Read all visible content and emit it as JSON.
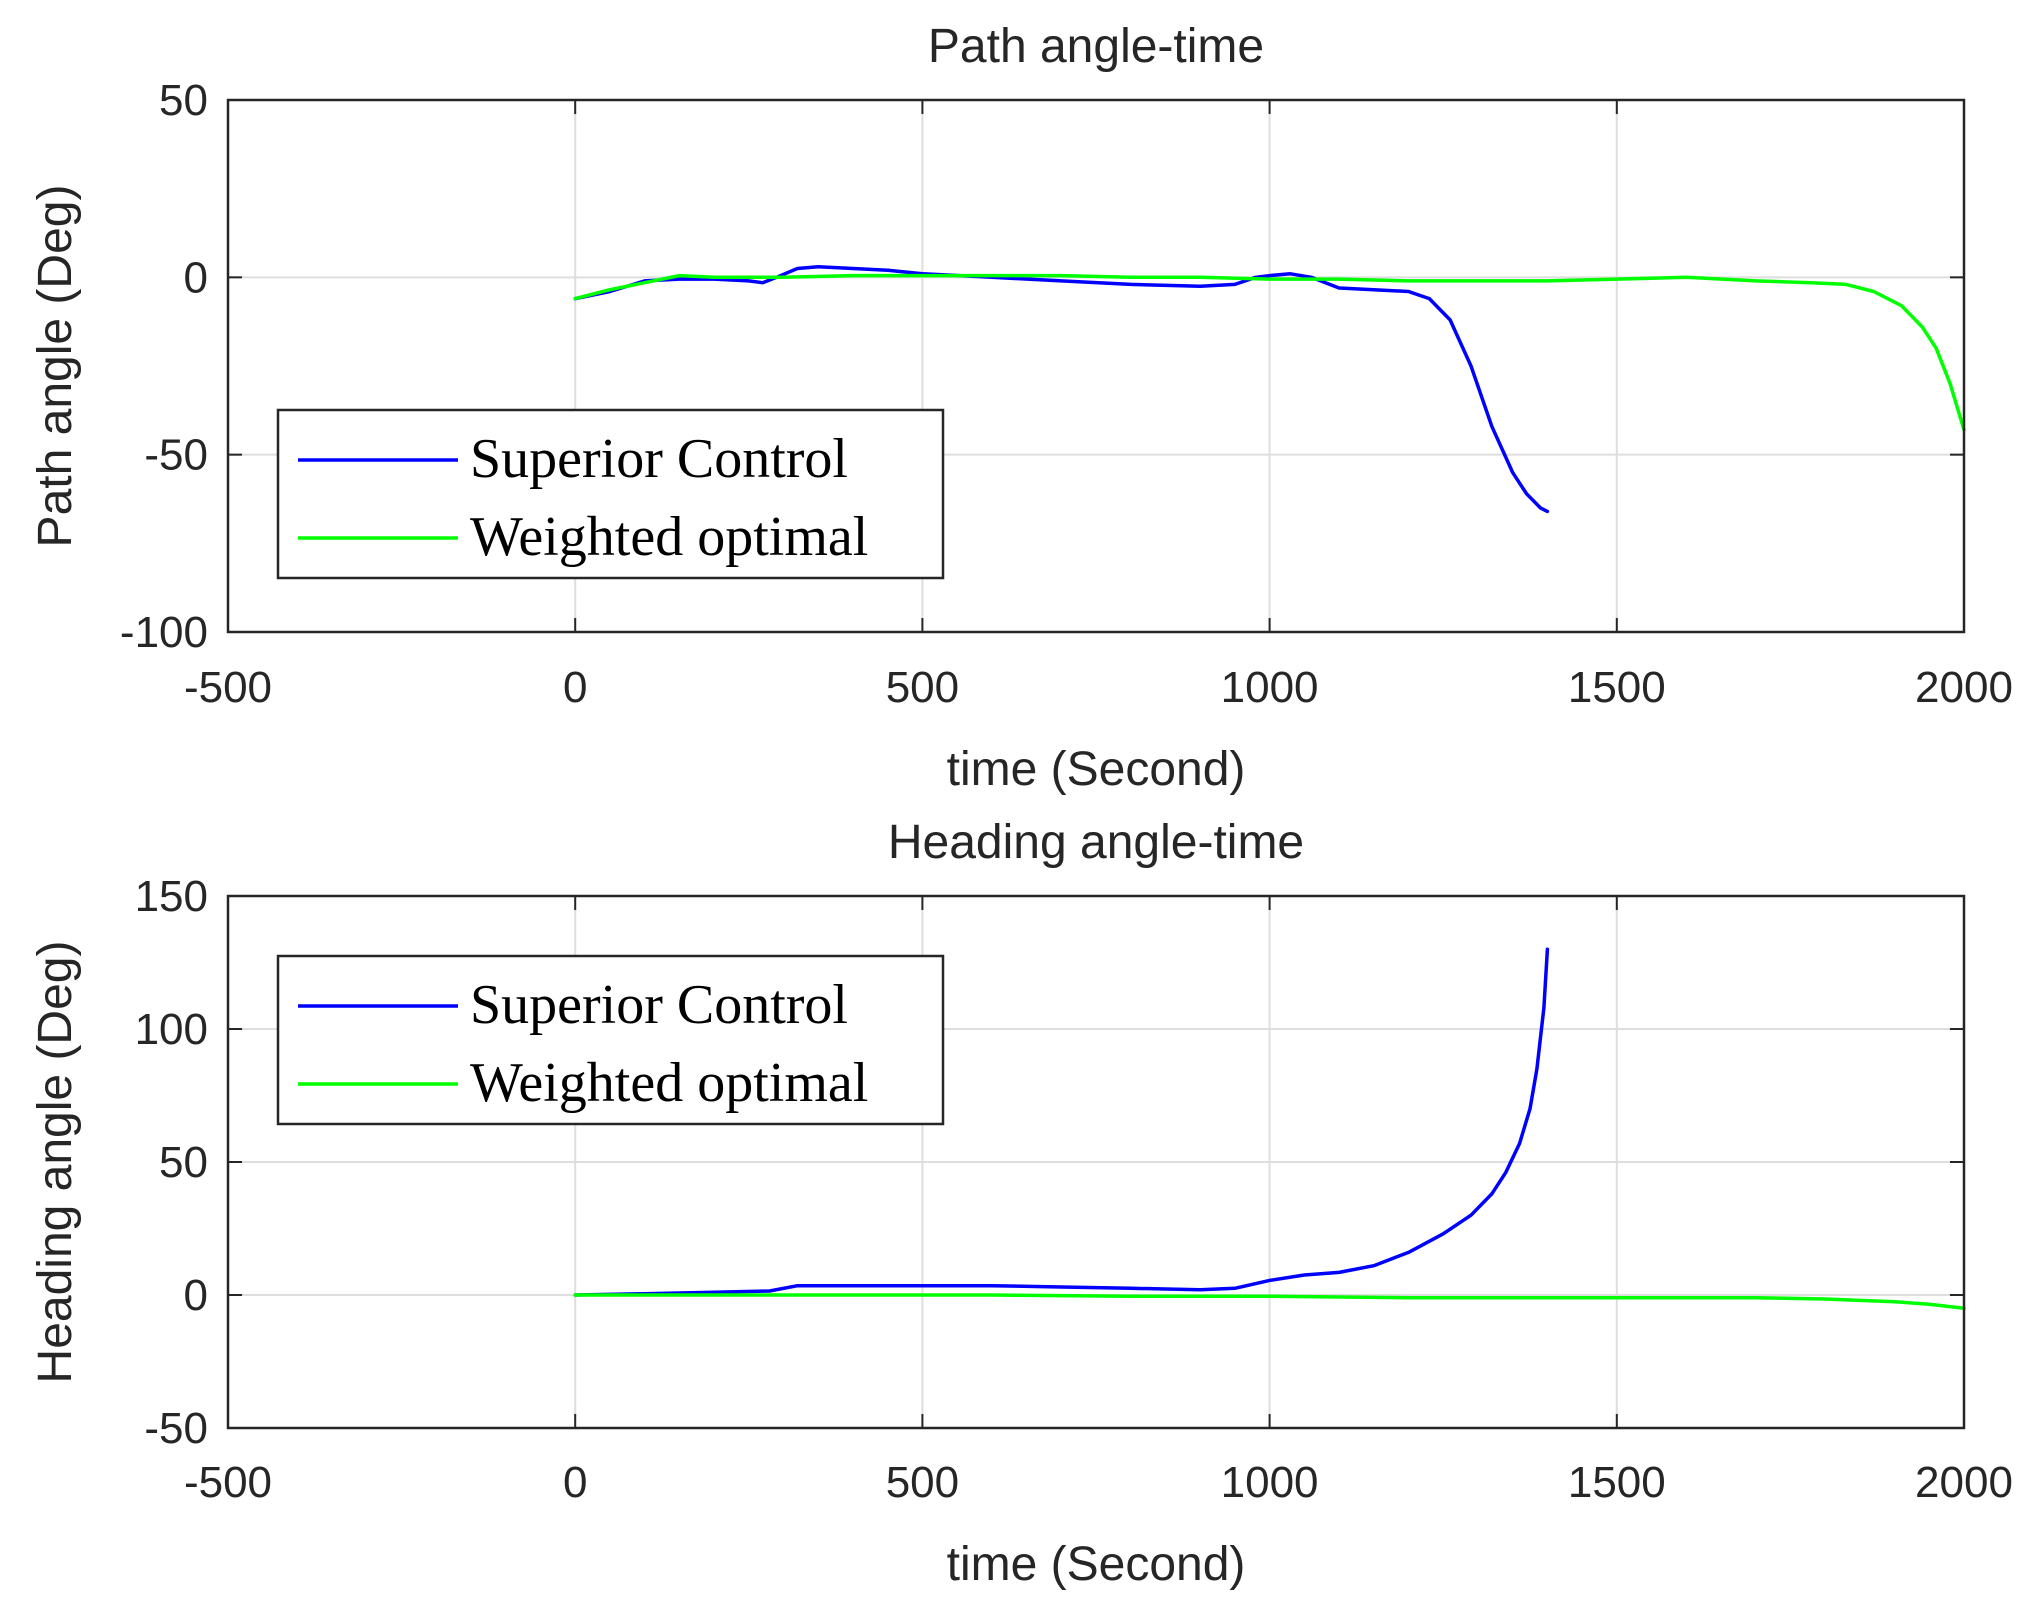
{
  "chart_data": [
    {
      "type": "line",
      "title": "Path angle-time",
      "xlabel": "time (Second)",
      "ylabel": "Path angle (Deg)",
      "xlim": [
        -500,
        2000
      ],
      "ylim": [
        -100,
        50
      ],
      "xticks": [
        -500,
        0,
        500,
        1000,
        1500,
        2000
      ],
      "yticks": [
        -100,
        -50,
        0,
        50
      ],
      "xtick_labels": [
        "-500",
        "0",
        "500",
        "1000",
        "1500",
        "2000"
      ],
      "ytick_labels": [
        "-100",
        "-50",
        "0",
        "50"
      ],
      "grid": true,
      "legend_position": "bottom-left",
      "series": [
        {
          "name": "Superior Control",
          "color": "#0000ff",
          "points": [
            [
              0,
              -6
            ],
            [
              50,
              -4
            ],
            [
              100,
              -1
            ],
            [
              150,
              -0.5
            ],
            [
              200,
              -0.5
            ],
            [
              250,
              -1
            ],
            [
              270,
              -1.5
            ],
            [
              290,
              0
            ],
            [
              320,
              2.5
            ],
            [
              350,
              3
            ],
            [
              400,
              2.5
            ],
            [
              450,
              2
            ],
            [
              500,
              1
            ],
            [
              600,
              0
            ],
            [
              700,
              -1
            ],
            [
              800,
              -2
            ],
            [
              900,
              -2.5
            ],
            [
              950,
              -2
            ],
            [
              980,
              0
            ],
            [
              1000,
              0.5
            ],
            [
              1030,
              1
            ],
            [
              1060,
              0
            ],
            [
              1100,
              -3
            ],
            [
              1150,
              -3.5
            ],
            [
              1200,
              -4
            ],
            [
              1230,
              -6
            ],
            [
              1260,
              -12
            ],
            [
              1290,
              -25
            ],
            [
              1320,
              -42
            ],
            [
              1350,
              -55
            ],
            [
              1370,
              -61
            ],
            [
              1390,
              -65
            ],
            [
              1400,
              -66
            ]
          ]
        },
        {
          "name": "Weighted optimal",
          "color": "#00ff00",
          "points": [
            [
              0,
              -6
            ],
            [
              50,
              -3.5
            ],
            [
              100,
              -1.5
            ],
            [
              150,
              0.5
            ],
            [
              200,
              0
            ],
            [
              300,
              0
            ],
            [
              400,
              0.5
            ],
            [
              500,
              0.5
            ],
            [
              600,
              0.5
            ],
            [
              700,
              0.5
            ],
            [
              800,
              0
            ],
            [
              900,
              0
            ],
            [
              1000,
              -0.5
            ],
            [
              1100,
              -0.5
            ],
            [
              1200,
              -1
            ],
            [
              1300,
              -1
            ],
            [
              1400,
              -1
            ],
            [
              1500,
              -0.5
            ],
            [
              1600,
              0
            ],
            [
              1700,
              -1
            ],
            [
              1780,
              -1.5
            ],
            [
              1830,
              -2
            ],
            [
              1870,
              -4
            ],
            [
              1910,
              -8
            ],
            [
              1940,
              -14
            ],
            [
              1960,
              -20
            ],
            [
              1980,
              -30
            ],
            [
              2000,
              -43
            ]
          ]
        }
      ]
    },
    {
      "type": "line",
      "title": "Heading angle-time",
      "xlabel": "time (Second)",
      "ylabel": "Heading angle (Deg)",
      "xlim": [
        -500,
        2000
      ],
      "ylim": [
        -50,
        150
      ],
      "xticks": [
        -500,
        0,
        500,
        1000,
        1500,
        2000
      ],
      "yticks": [
        -50,
        0,
        50,
        100,
        150
      ],
      "xtick_labels": [
        "-500",
        "0",
        "500",
        "1000",
        "1500",
        "2000"
      ],
      "ytick_labels": [
        "-50",
        "0",
        "50",
        "100",
        "150"
      ],
      "grid": true,
      "legend_position": "top-left",
      "series": [
        {
          "name": "Superior Control",
          "color": "#0000ff",
          "points": [
            [
              0,
              0
            ],
            [
              100,
              0.5
            ],
            [
              200,
              1
            ],
            [
              280,
              1.5
            ],
            [
              320,
              3.5
            ],
            [
              400,
              3.5
            ],
            [
              500,
              3.5
            ],
            [
              600,
              3.5
            ],
            [
              700,
              3
            ],
            [
              800,
              2.5
            ],
            [
              900,
              2
            ],
            [
              950,
              2.5
            ],
            [
              1000,
              5.5
            ],
            [
              1050,
              7.5
            ],
            [
              1100,
              8.5
            ],
            [
              1150,
              11
            ],
            [
              1200,
              16
            ],
            [
              1250,
              23
            ],
            [
              1290,
              30
            ],
            [
              1320,
              38
            ],
            [
              1340,
              46
            ],
            [
              1360,
              57
            ],
            [
              1375,
              70
            ],
            [
              1385,
              85
            ],
            [
              1395,
              108
            ],
            [
              1400,
              130
            ]
          ]
        },
        {
          "name": "Weighted optimal",
          "color": "#00ff00",
          "points": [
            [
              0,
              0
            ],
            [
              200,
              0
            ],
            [
              400,
              0
            ],
            [
              600,
              0
            ],
            [
              800,
              -0.5
            ],
            [
              1000,
              -0.5
            ],
            [
              1200,
              -1
            ],
            [
              1400,
              -1
            ],
            [
              1600,
              -1
            ],
            [
              1700,
              -1
            ],
            [
              1800,
              -1.5
            ],
            [
              1900,
              -2.5
            ],
            [
              1950,
              -3.5
            ],
            [
              2000,
              -5
            ]
          ]
        }
      ]
    }
  ]
}
